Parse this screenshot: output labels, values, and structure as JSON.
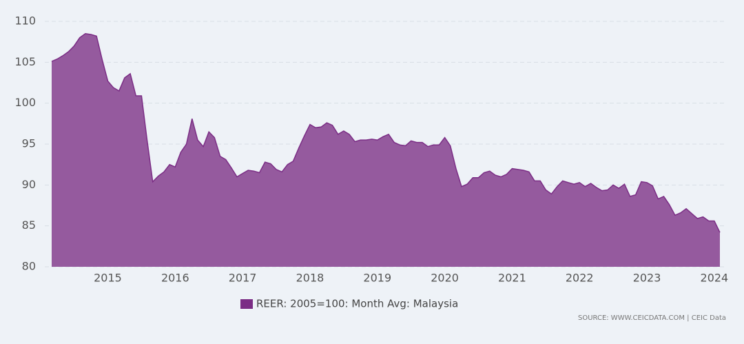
{
  "chart_data": {
    "type": "area",
    "series": [
      {
        "name": "REER: 2005=100: Month Avg: Malaysia",
        "color": "#7b2d85",
        "fill": "#955a9e",
        "x": [
          2014.167,
          2014.25,
          2014.333,
          2014.417,
          2014.5,
          2014.583,
          2014.667,
          2014.75,
          2014.833,
          2014.917,
          2015.0,
          2015.083,
          2015.167,
          2015.25,
          2015.333,
          2015.417,
          2015.5,
          2015.583,
          2015.667,
          2015.75,
          2015.833,
          2015.917,
          2016.0,
          2016.083,
          2016.167,
          2016.25,
          2016.333,
          2016.417,
          2016.5,
          2016.583,
          2016.667,
          2016.75,
          2016.833,
          2016.917,
          2017.0,
          2017.083,
          2017.167,
          2017.25,
          2017.333,
          2017.417,
          2017.5,
          2017.583,
          2017.667,
          2017.75,
          2017.833,
          2017.917,
          2018.0,
          2018.083,
          2018.167,
          2018.25,
          2018.333,
          2018.417,
          2018.5,
          2018.583,
          2018.667,
          2018.75,
          2018.833,
          2018.917,
          2019.0,
          2019.083,
          2019.167,
          2019.25,
          2019.333,
          2019.417,
          2019.5,
          2019.583,
          2019.667,
          2019.75,
          2019.833,
          2019.917,
          2020.0,
          2020.083,
          2020.167,
          2020.25,
          2020.333,
          2020.417,
          2020.5,
          2020.583,
          2020.667,
          2020.75,
          2020.833,
          2020.917,
          2021.0,
          2021.083,
          2021.167,
          2021.25,
          2021.333,
          2021.417,
          2021.5,
          2021.583,
          2021.667,
          2021.75,
          2021.833,
          2021.917,
          2022.0,
          2022.083,
          2022.167,
          2022.25,
          2022.333,
          2022.417,
          2022.5,
          2022.583,
          2022.667,
          2022.75,
          2022.833,
          2022.917,
          2023.0,
          2023.083,
          2023.167,
          2023.25,
          2023.333,
          2023.417,
          2023.5,
          2023.583,
          2023.667,
          2023.75,
          2023.833,
          2023.917,
          2024.0,
          2024.083
        ],
        "values": [
          105.1,
          105.4,
          105.8,
          106.3,
          107.0,
          108.0,
          108.5,
          108.4,
          108.2,
          105.3,
          102.7,
          101.9,
          101.5,
          103.1,
          103.6,
          100.9,
          100.9,
          95.5,
          90.4,
          91.1,
          91.6,
          92.5,
          92.2,
          94.0,
          95.0,
          98.1,
          95.5,
          94.7,
          96.5,
          95.8,
          93.5,
          93.1,
          92.1,
          91.0,
          91.4,
          91.8,
          91.7,
          91.5,
          92.8,
          92.6,
          91.9,
          91.6,
          92.5,
          92.9,
          94.5,
          96.0,
          97.4,
          97.0,
          97.1,
          97.6,
          97.3,
          96.2,
          96.6,
          96.2,
          95.3,
          95.5,
          95.5,
          95.6,
          95.5,
          95.9,
          96.2,
          95.2,
          94.9,
          94.8,
          95.4,
          95.2,
          95.2,
          94.7,
          94.9,
          94.9,
          95.8,
          94.8,
          92.0,
          89.8,
          90.1,
          90.9,
          90.9,
          91.5,
          91.7,
          91.2,
          91.0,
          91.3,
          92.0,
          91.9,
          91.8,
          91.6,
          90.5,
          90.5,
          89.4,
          88.9,
          89.8,
          90.5,
          90.3,
          90.1,
          90.3,
          89.8,
          90.2,
          89.7,
          89.3,
          89.4,
          90.0,
          89.6,
          90.1,
          88.6,
          88.8,
          90.4,
          90.3,
          89.9,
          88.3,
          88.6,
          87.6,
          86.3,
          86.6,
          87.1,
          86.5,
          85.9,
          86.1,
          85.6,
          85.6,
          84.2
        ]
      }
    ],
    "xlim": [
      2014.167,
      2024.083
    ],
    "xticks": [
      2015,
      2016,
      2017,
      2018,
      2019,
      2020,
      2021,
      2022,
      2023,
      2024
    ],
    "ylim": [
      80,
      110
    ],
    "yticks": [
      80,
      85,
      90,
      95,
      100,
      105,
      110
    ],
    "grid": true,
    "legend": "bottom",
    "source": "SOURCE: WWW.CEICDATA.COM | CEIC Data"
  }
}
